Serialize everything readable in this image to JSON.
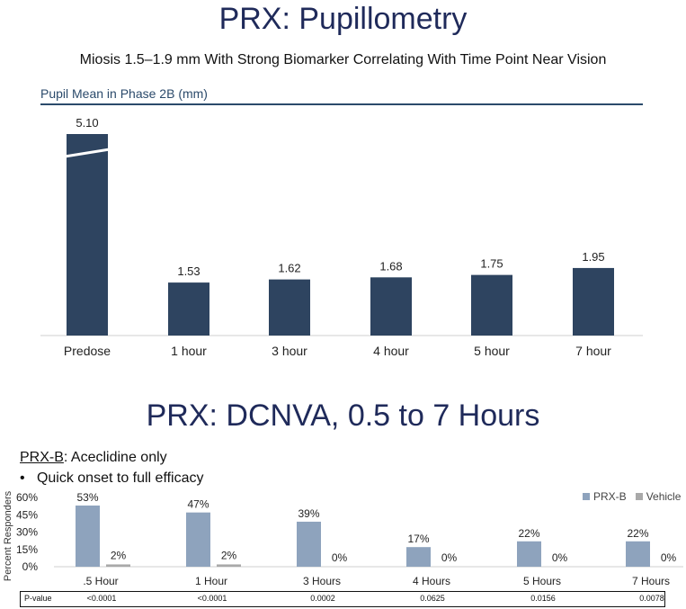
{
  "title_top": "PRX: Pupillometry",
  "subtitle_top": "Miosis 1.5–1.9 mm With Strong Biomarker Correlating With Time Point Near Vision",
  "title_bottom": "PRX: DCNVA, 0.5 to 7 Hours",
  "prxb_label": "PRX-B",
  "prxb_desc": ": Aceclidine only",
  "bullet": "Quick onset to full efficacy",
  "pvalue_label": "P-value",
  "pvalues": [
    "<0.0001",
    "<0.0001",
    "0.0002",
    "0.0625",
    "0.0156",
    "0.0078"
  ],
  "colors": {
    "bar1": "#2e4460",
    "prxb": "#8ea3bd",
    "vehicle": "#a9a9a9",
    "title": "#1f2a5a"
  },
  "chart_data": [
    {
      "type": "bar",
      "title": "Pupil Mean in Phase 2B (mm)",
      "categories": [
        "Predose",
        "1 hour",
        "3 hour",
        "4 hour",
        "5 hour",
        "7 hour"
      ],
      "values": [
        5.1,
        1.53,
        1.62,
        1.68,
        1.75,
        1.95
      ],
      "data_labels": [
        "5.10",
        "1.53",
        "1.62",
        "1.68",
        "1.75",
        "1.95"
      ],
      "axis_break": "Predose bar",
      "grid": false
    },
    {
      "type": "bar",
      "categories": [
        ".5 Hour",
        "1 Hour",
        "3 Hours",
        "4 Hours",
        "5 Hours",
        "7 Hours"
      ],
      "ylabel": "Percent Responders",
      "ylim": [
        0,
        60
      ],
      "yticks": [
        "0%",
        "15%",
        "30%",
        "45%",
        "60%"
      ],
      "legend_position": "top-right",
      "series": [
        {
          "name": "PRX-B",
          "values": [
            53,
            47,
            39,
            17,
            22,
            22
          ],
          "labels": [
            "53%",
            "47%",
            "39%",
            "17%",
            "22%",
            "22%"
          ]
        },
        {
          "name": "Vehicle",
          "values": [
            2,
            2,
            0,
            0,
            0,
            0
          ],
          "labels": [
            "2%",
            "2%",
            "0%",
            "0%",
            "0%",
            "0%"
          ]
        }
      ]
    }
  ]
}
